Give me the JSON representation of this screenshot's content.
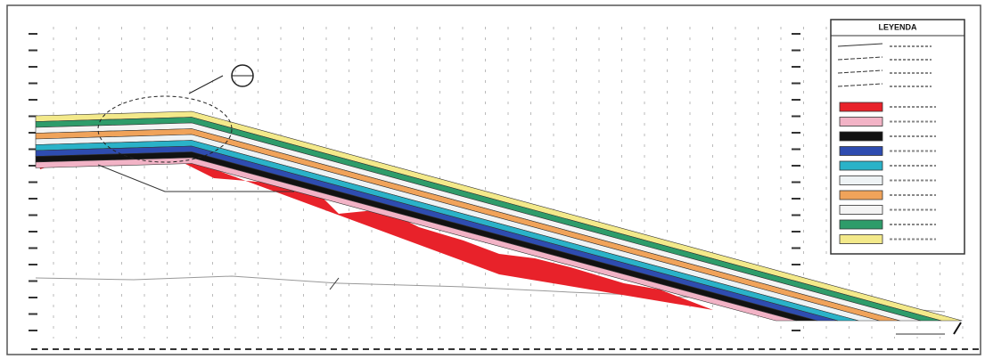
{
  "legend": {
    "title": "LEYENDA"
  }
}
